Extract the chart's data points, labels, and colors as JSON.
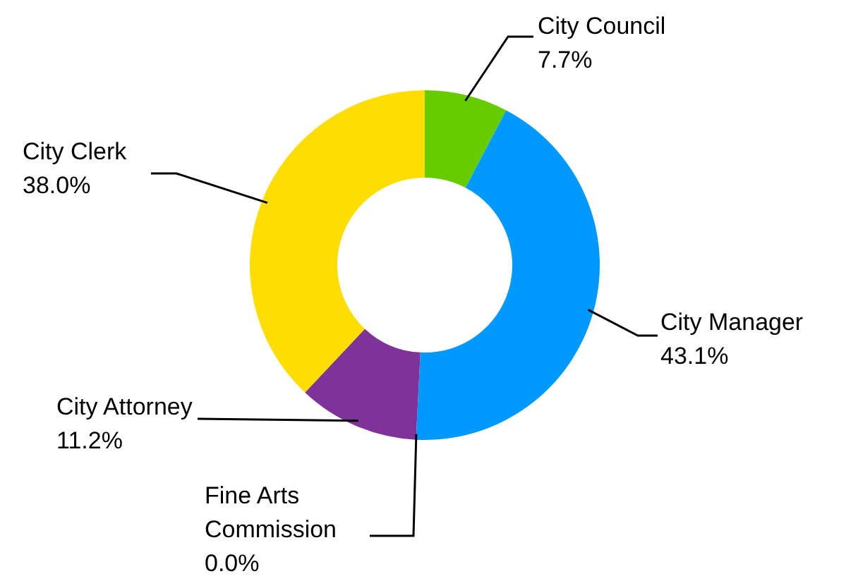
{
  "chart_data": {
    "type": "donut",
    "categories": [
      "City Council",
      "City Manager",
      "Fine Arts Commission",
      "City Attorney",
      "City Clerk"
    ],
    "values": [
      7.7,
      43.1,
      0.0,
      11.2,
      38.0
    ],
    "colors": [
      "#66cc00",
      "#0099ff",
      "#999999",
      "#7f3399",
      "#ffdd00"
    ],
    "value_labels": [
      "7.7%",
      "43.1%",
      "0.0%",
      "11.2%",
      "38.0%"
    ]
  }
}
